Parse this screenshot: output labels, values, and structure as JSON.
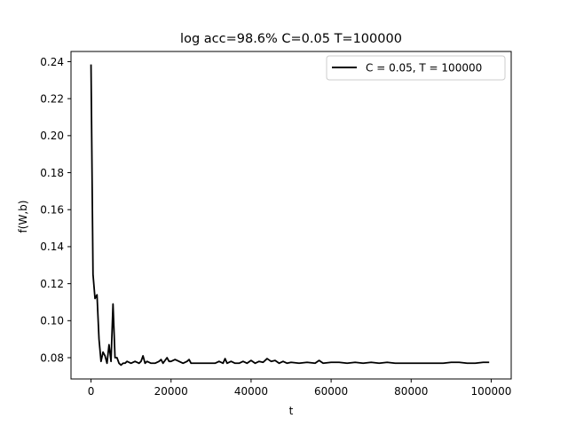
{
  "chart_data": {
    "type": "line",
    "title": "log acc=98.6% C=0.05 T=100000",
    "xlabel": "t",
    "ylabel": "f(W,b)",
    "xlim": [
      -5000,
      105000
    ],
    "ylim": [
      0.0685,
      0.2455
    ],
    "xticks": [
      0,
      20000,
      40000,
      60000,
      80000,
      100000
    ],
    "yticks": [
      0.08,
      0.1,
      0.12,
      0.14,
      0.16,
      0.18,
      0.2,
      0.22,
      0.24
    ],
    "xtick_labels": [
      "0",
      "20000",
      "40000",
      "60000",
      "80000",
      "100000"
    ],
    "ytick_labels": [
      "0.08",
      "0.10",
      "0.12",
      "0.14",
      "0.16",
      "0.18",
      "0.20",
      "0.22",
      "0.24"
    ],
    "grid": false,
    "legend_position": "upper right",
    "series": [
      {
        "name": "C = 0.05, T = 100000",
        "color": "#000000",
        "x": [
          0,
          500,
          1000,
          1500,
          2000,
          2500,
          3000,
          3500,
          4000,
          4500,
          5000,
          5500,
          6000,
          6500,
          7000,
          7500,
          8000,
          8500,
          9000,
          10000,
          11000,
          12000,
          12500,
          13000,
          13500,
          14000,
          15000,
          16000,
          17000,
          17500,
          18000,
          19000,
          19500,
          20000,
          21000,
          22000,
          23000,
          24000,
          24500,
          25000,
          26000,
          27000,
          28000,
          29000,
          30000,
          31000,
          32000,
          33000,
          33500,
          34000,
          35000,
          36000,
          37000,
          38000,
          39000,
          40000,
          41000,
          42000,
          43000,
          44000,
          45000,
          46000,
          47000,
          48000,
          49000,
          50000,
          52000,
          54000,
          56000,
          57000,
          58000,
          60000,
          62000,
          64000,
          66000,
          68000,
          70000,
          72000,
          74000,
          76000,
          78000,
          80000,
          82000,
          84000,
          86000,
          88000,
          90000,
          92000,
          94000,
          96000,
          98000,
          99500
        ],
        "values": [
          0.2385,
          0.125,
          0.112,
          0.114,
          0.09,
          0.078,
          0.083,
          0.081,
          0.077,
          0.087,
          0.078,
          0.109,
          0.08,
          0.08,
          0.077,
          0.076,
          0.077,
          0.077,
          0.078,
          0.077,
          0.078,
          0.077,
          0.078,
          0.081,
          0.077,
          0.078,
          0.077,
          0.077,
          0.078,
          0.079,
          0.077,
          0.08,
          0.078,
          0.078,
          0.079,
          0.078,
          0.077,
          0.078,
          0.079,
          0.077,
          0.077,
          0.077,
          0.077,
          0.077,
          0.077,
          0.077,
          0.078,
          0.077,
          0.0795,
          0.077,
          0.078,
          0.077,
          0.077,
          0.078,
          0.077,
          0.0785,
          0.077,
          0.078,
          0.0775,
          0.0795,
          0.078,
          0.0785,
          0.077,
          0.078,
          0.077,
          0.0775,
          0.077,
          0.0775,
          0.077,
          0.0785,
          0.077,
          0.0775,
          0.0775,
          0.077,
          0.0775,
          0.077,
          0.0775,
          0.077,
          0.0775,
          0.077,
          0.077,
          0.077,
          0.077,
          0.077,
          0.077,
          0.077,
          0.0775,
          0.0775,
          0.077,
          0.077,
          0.0775,
          0.0775
        ]
      }
    ]
  }
}
